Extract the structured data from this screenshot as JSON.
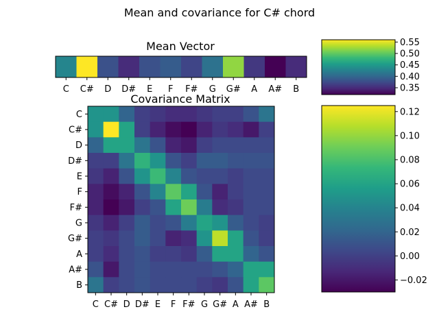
{
  "figure": {
    "suptitle": "Mean and covariance for C# chord"
  },
  "colors": {
    "viridis": [
      "#440154",
      "#482878",
      "#3e4989",
      "#31688e",
      "#26828e",
      "#1f9e89",
      "#35b779",
      "#6ece58",
      "#b5de2b",
      "#fde725"
    ]
  },
  "chart_data": [
    {
      "type": "heatmap",
      "title": "Mean Vector",
      "x_labels": [
        "C",
        "C#",
        "D",
        "D#",
        "E",
        "F",
        "F#",
        "G",
        "G#",
        "A",
        "A#",
        "B"
      ],
      "values": [
        [
          0.43,
          0.56,
          0.38,
          0.35,
          0.38,
          0.39,
          0.37,
          0.41,
          0.52,
          0.36,
          0.32,
          0.35
        ]
      ],
      "vmin": 0.32,
      "vmax": 0.56,
      "colorbar": {
        "ticks": [
          0.35,
          0.4,
          0.45,
          0.5,
          0.55
        ],
        "tick_labels": [
          "0.35",
          "0.40",
          "0.45",
          "0.50",
          "0.55"
        ]
      }
    },
    {
      "type": "heatmap",
      "title": "Covariance Matrix",
      "x_labels": [
        "C",
        "C#",
        "D",
        "D#",
        "E",
        "F",
        "F#",
        "G",
        "G#",
        "A",
        "A#",
        "B"
      ],
      "y_labels": [
        "C",
        "C#",
        "D",
        "D#",
        "E",
        "F",
        "F#",
        "G",
        "G#",
        "A",
        "A#",
        "B"
      ],
      "values": [
        [
          0.05,
          0.05,
          0.02,
          0.0,
          -0.005,
          -0.01,
          -0.01,
          -0.005,
          0.0,
          0.0,
          0.01,
          0.03
        ],
        [
          0.05,
          0.125,
          0.06,
          0.0,
          -0.015,
          -0.025,
          -0.03,
          -0.015,
          -0.005,
          -0.01,
          -0.02,
          0.0
        ],
        [
          0.02,
          0.06,
          0.06,
          0.03,
          0.01,
          -0.015,
          -0.02,
          0.0,
          0.005,
          0.005,
          0.005,
          0.005
        ],
        [
          0.0,
          0.0,
          0.03,
          0.07,
          0.05,
          0.01,
          0.0,
          0.015,
          0.015,
          0.01,
          0.01,
          0.01
        ],
        [
          -0.005,
          -0.015,
          0.01,
          0.05,
          0.075,
          0.04,
          0.01,
          0.005,
          0.005,
          0.0,
          0.005,
          0.005
        ],
        [
          -0.015,
          -0.025,
          -0.015,
          0.01,
          0.04,
          0.085,
          0.06,
          0.01,
          -0.015,
          0.0,
          0.005,
          0.005
        ],
        [
          -0.015,
          -0.03,
          -0.02,
          0.0,
          0.01,
          0.06,
          0.09,
          0.035,
          -0.01,
          -0.005,
          0.005,
          0.005
        ],
        [
          -0.005,
          -0.015,
          0.0,
          0.015,
          0.005,
          0.01,
          0.035,
          0.06,
          0.05,
          0.015,
          0.005,
          0.0
        ],
        [
          0.0,
          -0.005,
          0.005,
          0.015,
          0.005,
          -0.015,
          -0.01,
          0.05,
          0.11,
          0.06,
          0.01,
          0.0
        ],
        [
          0.0,
          -0.01,
          0.005,
          0.01,
          0.0,
          0.0,
          -0.005,
          0.015,
          0.06,
          0.06,
          0.02,
          0.01
        ],
        [
          0.01,
          -0.02,
          0.005,
          0.01,
          0.005,
          0.005,
          0.005,
          0.005,
          0.01,
          0.02,
          0.06,
          0.06
        ],
        [
          0.03,
          0.0,
          0.005,
          0.01,
          0.005,
          0.005,
          0.005,
          0.0,
          -0.005,
          0.01,
          0.06,
          0.085
        ]
      ],
      "vmin": -0.03,
      "vmax": 0.125,
      "colorbar": {
        "ticks": [
          -0.02,
          0.0,
          0.02,
          0.04,
          0.06,
          0.08,
          0.1,
          0.12
        ],
        "tick_labels": [
          "−0.02",
          "0.00",
          "0.02",
          "0.04",
          "0.06",
          "0.08",
          "0.10",
          "0.12"
        ]
      }
    }
  ]
}
